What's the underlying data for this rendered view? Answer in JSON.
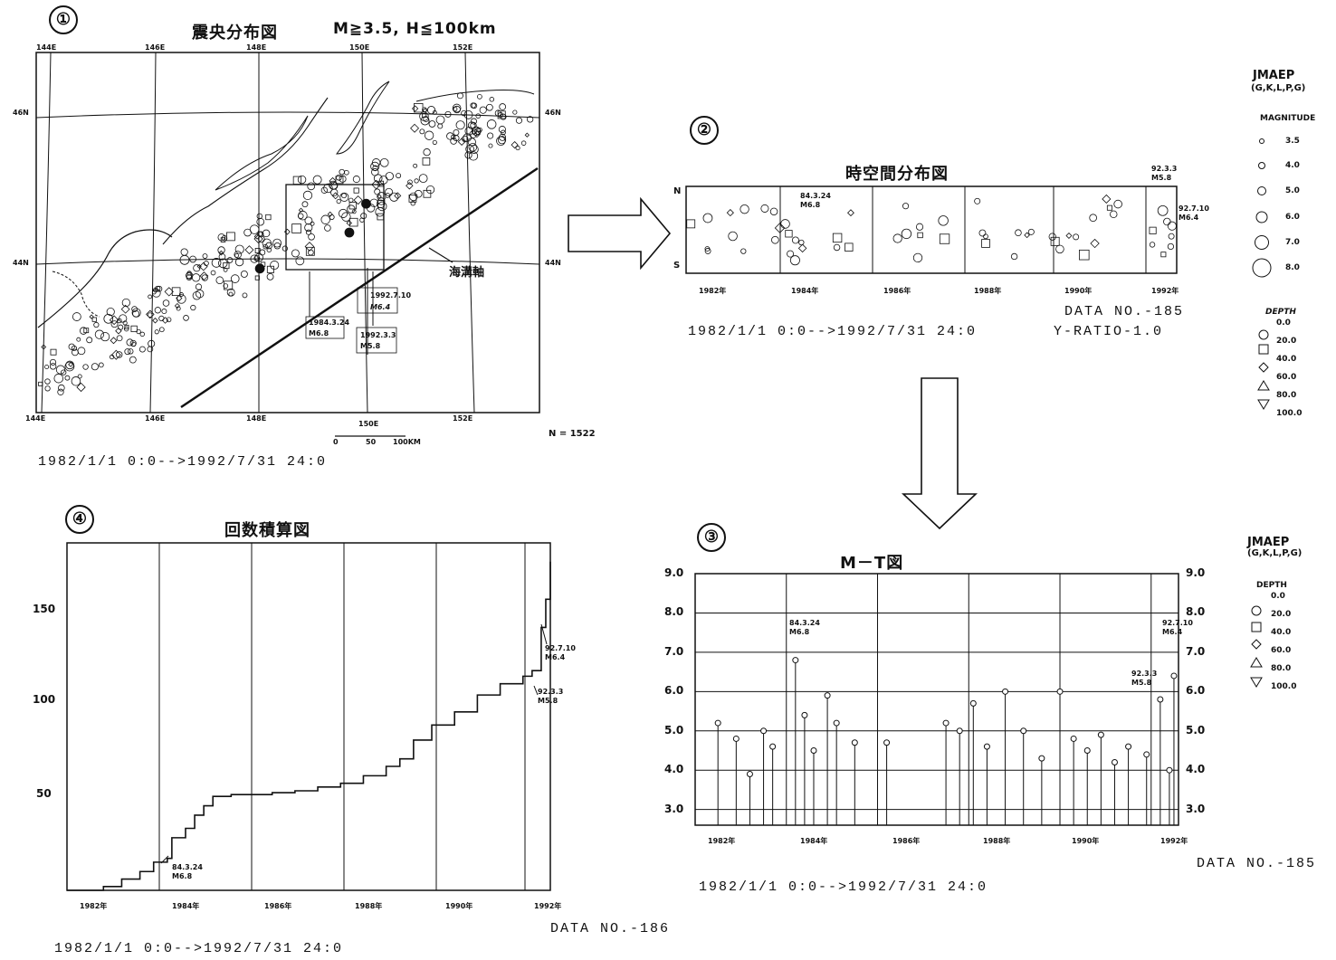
{
  "panel1": {
    "number": "①",
    "title": "震央分布図",
    "condition": "M≧3.5, H≦100km",
    "lon_labels": [
      "144E",
      "146E",
      "148E",
      "150E",
      "152E"
    ],
    "lat_labels": [
      "46N",
      "44N"
    ],
    "trench_label": "海溝軸",
    "annotations": [
      {
        "date": "1992.7.10",
        "mag": "M6.4"
      },
      {
        "date": "1984.3.24",
        "mag": "M6.8"
      },
      {
        "date": "1992.3.3",
        "mag": "M5.8"
      }
    ],
    "scale": {
      "labels": [
        "0",
        "50",
        "100KM"
      ],
      "mid_label": "150E"
    },
    "count": "N = 1522",
    "period": "1982/1/1 0:0-->1992/7/31 24:0"
  },
  "panel2": {
    "number": "②",
    "title": "時空間分布図",
    "north": "N",
    "south": "S",
    "years": [
      "1982年",
      "1984年",
      "1986年",
      "1988年",
      "1990年",
      "1992年"
    ],
    "annotations": [
      {
        "date": "84.3.24",
        "mag": "M6.8"
      },
      {
        "date": "92.3.3",
        "mag": "M5.8"
      },
      {
        "date": "92.7.10",
        "mag": "M6.4"
      }
    ],
    "data_no": "DATA NO.-185",
    "y_ratio": "Y-RATIO-1.0",
    "period": "1982/1/1 0:0-->1992/7/31 24:0"
  },
  "panel3": {
    "number": "③",
    "title": "M－T図",
    "data_no": "DATA NO.-185",
    "period": "1982/1/1 0:0-->1992/7/31 24:0"
  },
  "panel4": {
    "number": "④",
    "title": "回数積算図",
    "data_no": "DATA NO.-186",
    "period": "1982/1/1 0:0-->1992/7/31 24:0"
  },
  "legend_top": {
    "title": "JMAEP",
    "sub": "(G,K,L,P,G)",
    "magnitude_title": "MAGNITUDE",
    "magnitudes": [
      "3.5",
      "4.0",
      "5.0",
      "6.0",
      "7.0",
      "8.0"
    ],
    "depth_title": "DEPTH",
    "depths": [
      "0.0",
      "20.0",
      "40.0",
      "60.0",
      "80.0",
      "100.0"
    ]
  },
  "legend_bottom": {
    "title": "JMAEP",
    "sub": "(G,K,L,P,G)",
    "depth_title": "DEPTH",
    "depths": [
      "0.0",
      "20.0",
      "40.0",
      "60.0",
      "80.0",
      "100.0"
    ]
  },
  "chart_data": [
    {
      "type": "scatter",
      "title": "震央分布図",
      "subtitle": "M≧3.5, H≦100km",
      "xlabel": "",
      "ylabel": "",
      "xlim": [
        144,
        153
      ],
      "ylim": [
        42,
        47
      ],
      "series": [
        {
          "values": [
            [
              144.5,
              42.6
            ],
            [
              145.2,
              43.0
            ],
            [
              145.8,
              43.2
            ],
            [
              146.6,
              43.6
            ],
            [
              147.2,
              43.9
            ],
            [
              147.8,
              44.2
            ],
            [
              148.4,
              44.4
            ],
            [
              149.2,
              44.9
            ],
            [
              149.8,
              45.0
            ],
            [
              150.5,
              45.2
            ],
            [
              151.3,
              45.9
            ],
            [
              151.8,
              46.1
            ],
            [
              152.3,
              46.0
            ]
          ]
        }
      ],
      "annotations": [
        {
          "text": "1992.7.10 M6.4",
          "x": 149.9,
          "y": 44.9
        },
        {
          "text": "1984.3.24 M6.8",
          "x": 148.0,
          "y": 44.0
        },
        {
          "text": "1992.3.3 M5.8",
          "x": 149.6,
          "y": 44.5
        }
      ]
    },
    {
      "type": "scatter",
      "title": "時空間分布図",
      "xlabel": "",
      "ylabel": "",
      "categories": [
        "1982年",
        "1984年",
        "1986年",
        "1988年",
        "1990年",
        "1992年"
      ],
      "xlim": [
        1982,
        1992.6
      ],
      "series": [
        {
          "values": [
            [
              1982.3,
              0.4
            ],
            [
              1983.1,
              0.5
            ],
            [
              1983.9,
              0.8
            ],
            [
              1984.2,
              0.3
            ],
            [
              1984.5,
              0.4
            ],
            [
              1985.3,
              0.5
            ],
            [
              1986.8,
              0.6
            ],
            [
              1987.3,
              0.4
            ],
            [
              1988.4,
              0.6
            ],
            [
              1989.2,
              0.3
            ],
            [
              1990.1,
              0.5
            ],
            [
              1990.6,
              0.4
            ],
            [
              1991.3,
              0.6
            ],
            [
              1992.2,
              0.5
            ],
            [
              1992.5,
              0.4
            ]
          ]
        }
      ]
    },
    {
      "type": "scatter",
      "title": "M－T図",
      "xlabel": "",
      "ylabel": "",
      "categories": [
        "1982年",
        "1984年",
        "1986年",
        "1988年",
        "1990年",
        "1992年"
      ],
      "yticks": [
        "3.0",
        "4.0",
        "5.0",
        "6.0",
        "7.0",
        "8.0",
        "9.0"
      ],
      "ylim": [
        2.6,
        9.0
      ],
      "xlim": [
        1982,
        1992.6
      ],
      "series": [
        {
          "values": [
            [
              1982.5,
              5.2
            ],
            [
              1982.9,
              4.8
            ],
            [
              1983.2,
              3.9
            ],
            [
              1983.5,
              5.0
            ],
            [
              1983.7,
              4.6
            ],
            [
              1984.2,
              6.8
            ],
            [
              1984.4,
              5.4
            ],
            [
              1984.6,
              4.5
            ],
            [
              1984.9,
              5.9
            ],
            [
              1985.1,
              5.2
            ],
            [
              1985.5,
              4.7
            ],
            [
              1986.2,
              4.7
            ],
            [
              1987.5,
              5.2
            ],
            [
              1987.8,
              5.0
            ],
            [
              1988.1,
              5.7
            ],
            [
              1988.4,
              4.6
            ],
            [
              1988.8,
              6.0
            ],
            [
              1989.2,
              5.0
            ],
            [
              1989.6,
              4.3
            ],
            [
              1990.0,
              6.0
            ],
            [
              1990.3,
              4.8
            ],
            [
              1990.6,
              4.5
            ],
            [
              1990.9,
              4.9
            ],
            [
              1991.2,
              4.2
            ],
            [
              1991.5,
              4.6
            ],
            [
              1991.9,
              4.4
            ],
            [
              1992.2,
              5.8
            ],
            [
              1992.4,
              4.0
            ],
            [
              1992.5,
              6.4
            ]
          ]
        }
      ],
      "annotations": [
        {
          "text": "84.3.24 M6.8",
          "x": 1984.2,
          "y": 6.8
        },
        {
          "text": "92.3.3 M5.8",
          "x": 1992.2,
          "y": 5.8
        },
        {
          "text": "92.7.10 M6.4",
          "x": 1992.5,
          "y": 6.4
        }
      ]
    },
    {
      "type": "line",
      "title": "回数積算図",
      "xlabel": "",
      "ylabel": "",
      "categories": [
        "1982年",
        "1984年",
        "1986年",
        "1988年",
        "1990年",
        "1992年"
      ],
      "yticks": [
        "50",
        "100",
        "150"
      ],
      "ylim": [
        0,
        185
      ],
      "xlim": [
        1982,
        1992.6
      ],
      "series": [
        {
          "values": [
            [
              1982.0,
              0
            ],
            [
              1982.8,
              2
            ],
            [
              1983.2,
              6
            ],
            [
              1983.6,
              10
            ],
            [
              1983.9,
              15
            ],
            [
              1984.2,
              17
            ],
            [
              1984.3,
              28
            ],
            [
              1984.6,
              33
            ],
            [
              1984.8,
              40
            ],
            [
              1985.0,
              45
            ],
            [
              1985.2,
              50
            ],
            [
              1985.6,
              51
            ],
            [
              1986.0,
              51
            ],
            [
              1986.5,
              52
            ],
            [
              1987.0,
              53
            ],
            [
              1987.5,
              55
            ],
            [
              1988.0,
              57
            ],
            [
              1988.5,
              61
            ],
            [
              1989.0,
              66
            ],
            [
              1989.3,
              70
            ],
            [
              1989.6,
              80
            ],
            [
              1990.0,
              88
            ],
            [
              1990.5,
              95
            ],
            [
              1991.0,
              104
            ],
            [
              1991.5,
              110
            ],
            [
              1992.0,
              114
            ],
            [
              1992.2,
              117
            ],
            [
              1992.4,
              140
            ],
            [
              1992.5,
              155
            ],
            [
              1992.6,
              175
            ]
          ]
        }
      ],
      "annotations": [
        {
          "text": "84.3.24 M6.8",
          "x": 1984.2,
          "y": 17
        },
        {
          "text": "92.3.3 M5.8",
          "x": 1992.2,
          "y": 117
        },
        {
          "text": "92.7.10 M6.4",
          "x": 1992.5,
          "y": 155
        }
      ]
    }
  ]
}
